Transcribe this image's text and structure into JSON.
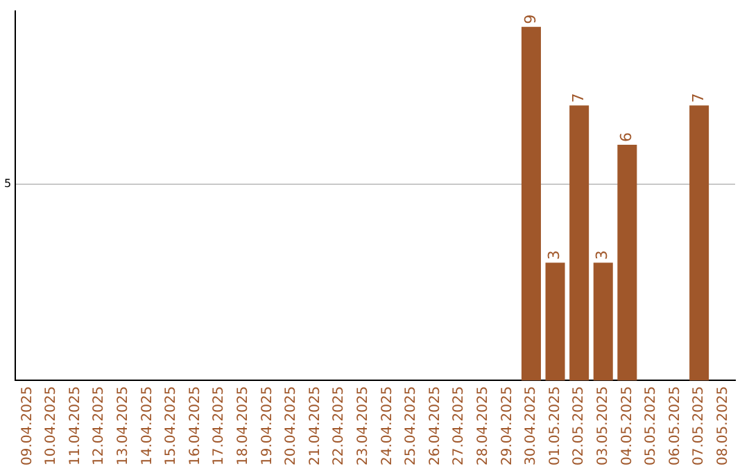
{
  "chart_data": {
    "type": "bar",
    "categories": [
      "09.04.2025",
      "10.04.2025",
      "11.04.2025",
      "12.04.2025",
      "13.04.2025",
      "14.04.2025",
      "15.04.2025",
      "16.04.2025",
      "17.04.2025",
      "18.04.2025",
      "19.04.2025",
      "20.04.2025",
      "21.04.2025",
      "22.04.2025",
      "23.04.2025",
      "24.04.2025",
      "25.04.2025",
      "26.04.2025",
      "27.04.2025",
      "28.04.2025",
      "29.04.2025",
      "30.04.2025",
      "01.05.2025",
      "02.05.2025",
      "03.05.2025",
      "04.05.2025",
      "05.05.2025",
      "06.05.2025",
      "07.05.2025",
      "08.05.2025"
    ],
    "values": [
      null,
      null,
      null,
      null,
      null,
      null,
      null,
      null,
      null,
      null,
      null,
      null,
      null,
      null,
      null,
      null,
      null,
      null,
      null,
      null,
      null,
      9,
      3,
      7,
      3,
      6,
      null,
      null,
      7,
      null
    ],
    "data_labels": true,
    "color": "#a0572a",
    "ylim": [
      0,
      9.4
    ],
    "yticks": [
      5
    ],
    "grid": "y",
    "legend": false
  }
}
